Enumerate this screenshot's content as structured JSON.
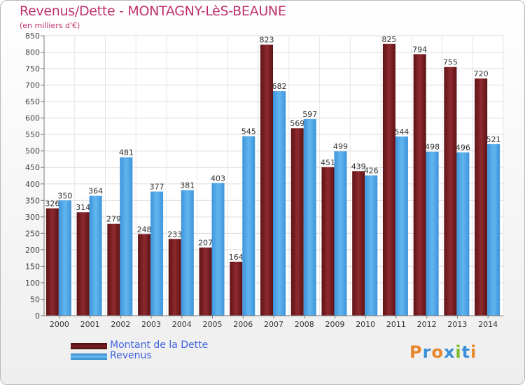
{
  "header": {
    "title": "Revenus/Dette - MONTAGNY-LèS-BEAUNE",
    "subtitle": "(en milliers d'€)"
  },
  "chart_data": {
    "type": "bar",
    "categories": [
      "2000",
      "2001",
      "2002",
      "2003",
      "2004",
      "2005",
      "2006",
      "2007",
      "2008",
      "2009",
      "2010",
      "2011",
      "2012",
      "2013",
      "2014"
    ],
    "series": [
      {
        "name": "Montant de la Dette",
        "color": "#7a1f22",
        "values": [
          326,
          314,
          279,
          248,
          233,
          207,
          164,
          823,
          569,
          451,
          439,
          825,
          794,
          755,
          720
        ]
      },
      {
        "name": "Revenus",
        "color": "#4aa3e6",
        "values": [
          350,
          364,
          481,
          377,
          381,
          403,
          545,
          682,
          597,
          499,
          426,
          544,
          498,
          496,
          521
        ]
      }
    ],
    "yticks": [
      0,
      50,
      100,
      150,
      200,
      250,
      300,
      350,
      400,
      450,
      500,
      550,
      600,
      650,
      700,
      750,
      800,
      850
    ],
    "ylim": [
      0,
      850
    ],
    "grid": true,
    "legend_position": "bottom-left"
  },
  "legend": {
    "items": [
      {
        "label": "Montant de la Dette",
        "color": "#7a1f22"
      },
      {
        "label": "Revenus",
        "color": "#4aa3e6"
      }
    ]
  },
  "logo": {
    "letters": [
      "P",
      "r",
      "o",
      "x",
      "i",
      "t",
      "i"
    ],
    "colors": [
      "#e7862a",
      "#3b8fd6",
      "#e7862a",
      "#3b8fd6",
      "#7cbb2c",
      "#3b8fd6",
      "#e7862a"
    ]
  }
}
